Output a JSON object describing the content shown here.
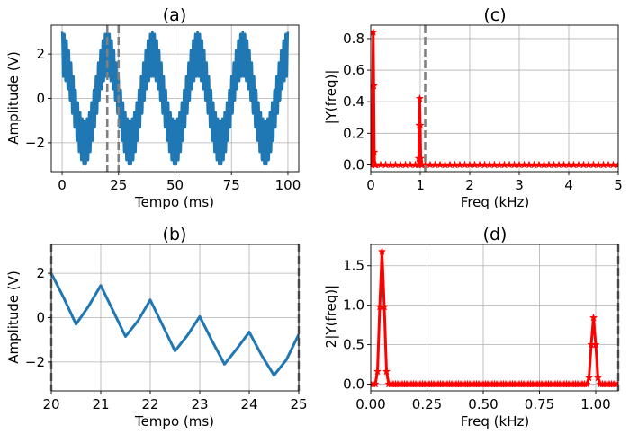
{
  "chart_data": [
    {
      "type": "line",
      "title": "(a)",
      "xlabel": "Tempo (ms)",
      "ylabel": "Amplitude (V)",
      "xlim": [
        -4.8,
        104.8
      ],
      "ylim": [
        -3.3,
        3.3
      ],
      "xticks": [
        0,
        25,
        50,
        75,
        100
      ],
      "xtick_labels": [
        "0",
        "25",
        "50",
        "75",
        "100"
      ],
      "yticks": [
        -2,
        0,
        2
      ],
      "ytick_labels": [
        "−2",
        "0",
        "2"
      ],
      "grid": true,
      "series": [
        {
          "color": "#1f77b4",
          "signal": {
            "low_amplitude": 2.0,
            "low_frequency_khz": 0.05,
            "high_amplitude": 1.0,
            "high_frequency_khz": 1.0,
            "t_start": 0,
            "t_end": 100
          },
          "envelope_x": [
            0,
            5,
            10,
            15,
            20,
            25,
            30,
            35,
            40,
            45,
            50,
            55,
            60,
            65,
            70,
            75,
            80,
            85,
            90,
            95,
            100
          ],
          "envelope_upper": [
            3.0,
            2.0,
            1.0,
            -0.1,
            1.0,
            2.0,
            3.0,
            2.0,
            1.0,
            -0.1,
            1.0,
            2.0,
            3.0,
            2.0,
            1.0,
            -0.1,
            1.0,
            2.0,
            3.0,
            2.0,
            1.0
          ],
          "envelope_lower": [
            1.0,
            -0.1,
            -1.0,
            -3.0,
            -1.0,
            -0.1,
            1.0,
            -0.1,
            -1.0,
            -3.0,
            -1.0,
            -0.1,
            1.0,
            -0.1,
            -1.0,
            -3.0,
            -1.0,
            -0.1,
            1.0,
            -0.1,
            -1.0
          ]
        }
      ],
      "vlines": [
        {
          "x": 20,
          "color": "#808080",
          "style": "dashed"
        },
        {
          "x": 25,
          "color": "#808080",
          "style": "dashed"
        }
      ]
    },
    {
      "type": "line",
      "title": "(b)",
      "xlabel": "Tempo (ms)",
      "ylabel": "Amplitude (V)",
      "xlim": [
        20,
        25
      ],
      "ylim": [
        -3.3,
        3.3
      ],
      "xticks": [
        20,
        21,
        22,
        23,
        24,
        25
      ],
      "xtick_labels": [
        "20",
        "21",
        "22",
        "23",
        "24",
        "25"
      ],
      "yticks": [
        -2,
        0,
        2
      ],
      "ytick_labels": [
        "−2",
        "0",
        "2"
      ],
      "grid": true,
      "series": [
        {
          "color": "#1f77b4",
          "x": [
            20.0,
            20.25,
            20.5,
            20.75,
            21.0,
            21.25,
            21.5,
            21.75,
            22.0,
            22.25,
            22.5,
            22.75,
            23.0,
            23.25,
            23.5,
            23.75,
            24.0,
            24.25,
            24.5,
            24.75,
            25.0
          ],
          "y": [
            2.0,
            0.9,
            -0.3,
            0.5,
            1.45,
            0.3,
            -0.85,
            -0.15,
            0.8,
            -0.35,
            -1.5,
            -0.8,
            0.05,
            -1.05,
            -2.1,
            -1.4,
            -0.65,
            -1.7,
            -2.6,
            -1.9,
            -0.75
          ]
        }
      ],
      "vlines": [
        {
          "x": 20,
          "color": "#808080",
          "style": "dashed"
        },
        {
          "x": 25,
          "color": "#808080",
          "style": "dashed"
        }
      ]
    },
    {
      "type": "line",
      "title": "(c)",
      "xlabel": "Freq (kHz)",
      "ylabel": "|Y(freq)|",
      "xlim": [
        0,
        5
      ],
      "ylim": [
        -0.043,
        0.885
      ],
      "xticks": [
        0,
        1,
        2,
        3,
        4,
        5
      ],
      "xtick_labels": [
        "0",
        "1",
        "2",
        "3",
        "4",
        "5"
      ],
      "yticks": [
        0.0,
        0.2,
        0.4,
        0.6,
        0.8
      ],
      "ytick_labels": [
        "0.0",
        "0.2",
        "0.4",
        "0.6",
        "0.8"
      ],
      "grid": true,
      "series": [
        {
          "color": "#ff0000",
          "marker": "star",
          "x": [
            0.0,
            0.01,
            0.02,
            0.03,
            0.04,
            0.05,
            0.06,
            0.07,
            0.08,
            0.09,
            0.1,
            0.2,
            0.3,
            0.4,
            0.5,
            0.6,
            0.7,
            0.8,
            0.9,
            0.96,
            0.97,
            0.98,
            0.99,
            1.0,
            1.01,
            1.02,
            1.03,
            1.04,
            1.1,
            1.2,
            1.3,
            1.4,
            1.5,
            1.6,
            1.7,
            1.8,
            1.9,
            2.0,
            2.1,
            2.2,
            2.3,
            2.4,
            2.5,
            2.6,
            2.7,
            2.8,
            2.9,
            3.0,
            3.1,
            3.2,
            3.3,
            3.4,
            3.5,
            3.6,
            3.7,
            3.8,
            3.9,
            4.0,
            4.1,
            4.2,
            4.3,
            4.4,
            4.5,
            4.6,
            4.7,
            4.8,
            4.9,
            5.0
          ],
          "y": [
            0.0,
            0.0,
            0.0,
            0.08,
            0.5,
            0.84,
            0.5,
            0.08,
            0.0,
            0.0,
            0.0,
            0.0,
            0.0,
            0.0,
            0.0,
            0.0,
            0.0,
            0.0,
            0.0,
            0.0,
            0.04,
            0.25,
            0.42,
            0.25,
            0.04,
            0.0,
            0.0,
            0.0,
            0.0,
            0.0,
            0.0,
            0.0,
            0.0,
            0.0,
            0.0,
            0.0,
            0.0,
            0.0,
            0.0,
            0.0,
            0.0,
            0.0,
            0.0,
            0.0,
            0.0,
            0.0,
            0.0,
            0.0,
            0.0,
            0.0,
            0.0,
            0.0,
            0.0,
            0.0,
            0.0,
            0.0,
            0.0,
            0.0,
            0.0,
            0.0,
            0.0,
            0.0,
            0.0,
            0.0,
            0.0,
            0.0,
            0.0,
            0.0
          ]
        }
      ],
      "vlines": [
        {
          "x": 1.1,
          "color": "#808080",
          "style": "dashed"
        }
      ]
    },
    {
      "type": "line",
      "title": "(d)",
      "xlabel": "Freq (kHz)",
      "ylabel": "2|Y(freq)|",
      "xlim": [
        0,
        1.1
      ],
      "ylim": [
        -0.085,
        1.77
      ],
      "xticks": [
        0.0,
        0.25,
        0.5,
        0.75,
        1.0
      ],
      "xtick_labels": [
        "0.00",
        "0.25",
        "0.50",
        "0.75",
        "1.00"
      ],
      "yticks": [
        0.0,
        0.5,
        1.0,
        1.5
      ],
      "ytick_labels": [
        "0.0",
        "0.5",
        "1.0",
        "1.5"
      ],
      "grid": true,
      "series": [
        {
          "color": "#ff0000",
          "marker": "star",
          "x": [
            0.0,
            0.01,
            0.02,
            0.03,
            0.04,
            0.05,
            0.06,
            0.07,
            0.08,
            0.09,
            0.1,
            0.11,
            0.12,
            0.13,
            0.14,
            0.15,
            0.16,
            0.17,
            0.18,
            0.19,
            0.2,
            0.21,
            0.22,
            0.23,
            0.24,
            0.25,
            0.26,
            0.27,
            0.28,
            0.29,
            0.3,
            0.31,
            0.32,
            0.33,
            0.34,
            0.35,
            0.36,
            0.37,
            0.38,
            0.39,
            0.4,
            0.41,
            0.42,
            0.43,
            0.44,
            0.45,
            0.46,
            0.47,
            0.48,
            0.49,
            0.5,
            0.51,
            0.52,
            0.53,
            0.54,
            0.55,
            0.56,
            0.57,
            0.58,
            0.59,
            0.6,
            0.61,
            0.62,
            0.63,
            0.64,
            0.65,
            0.66,
            0.67,
            0.68,
            0.69,
            0.7,
            0.71,
            0.72,
            0.73,
            0.74,
            0.75,
            0.76,
            0.77,
            0.78,
            0.79,
            0.8,
            0.81,
            0.82,
            0.83,
            0.84,
            0.85,
            0.86,
            0.87,
            0.88,
            0.89,
            0.9,
            0.91,
            0.92,
            0.93,
            0.94,
            0.95,
            0.96,
            0.97,
            0.98,
            0.99,
            1.0,
            1.01,
            1.02,
            1.03,
            1.04,
            1.05,
            1.06,
            1.07,
            1.08,
            1.09,
            1.1
          ],
          "y": [
            0.0,
            0.0,
            0.0,
            0.16,
            0.98,
            1.68,
            0.98,
            0.16,
            0.0,
            0.0,
            0.0,
            0.0,
            0.0,
            0.0,
            0.0,
            0.0,
            0.0,
            0.0,
            0.0,
            0.0,
            0.0,
            0.0,
            0.0,
            0.0,
            0.0,
            0.0,
            0.0,
            0.0,
            0.0,
            0.0,
            0.0,
            0.0,
            0.0,
            0.0,
            0.0,
            0.0,
            0.0,
            0.0,
            0.0,
            0.0,
            0.0,
            0.0,
            0.0,
            0.0,
            0.0,
            0.0,
            0.0,
            0.0,
            0.0,
            0.0,
            0.0,
            0.0,
            0.0,
            0.0,
            0.0,
            0.0,
            0.0,
            0.0,
            0.0,
            0.0,
            0.0,
            0.0,
            0.0,
            0.0,
            0.0,
            0.0,
            0.0,
            0.0,
            0.0,
            0.0,
            0.0,
            0.0,
            0.0,
            0.0,
            0.0,
            0.0,
            0.0,
            0.0,
            0.0,
            0.0,
            0.0,
            0.0,
            0.0,
            0.0,
            0.0,
            0.0,
            0.0,
            0.0,
            0.0,
            0.0,
            0.0,
            0.0,
            0.0,
            0.0,
            0.0,
            0.0,
            0.0,
            0.08,
            0.5,
            0.84,
            0.5,
            0.08,
            0.0,
            0.0,
            0.0,
            0.0,
            0.0,
            0.0,
            0.0,
            0.0,
            0.0
          ]
        }
      ],
      "vlines": [
        {
          "x": 1.1,
          "color": "#808080",
          "style": "dashed"
        }
      ]
    }
  ]
}
